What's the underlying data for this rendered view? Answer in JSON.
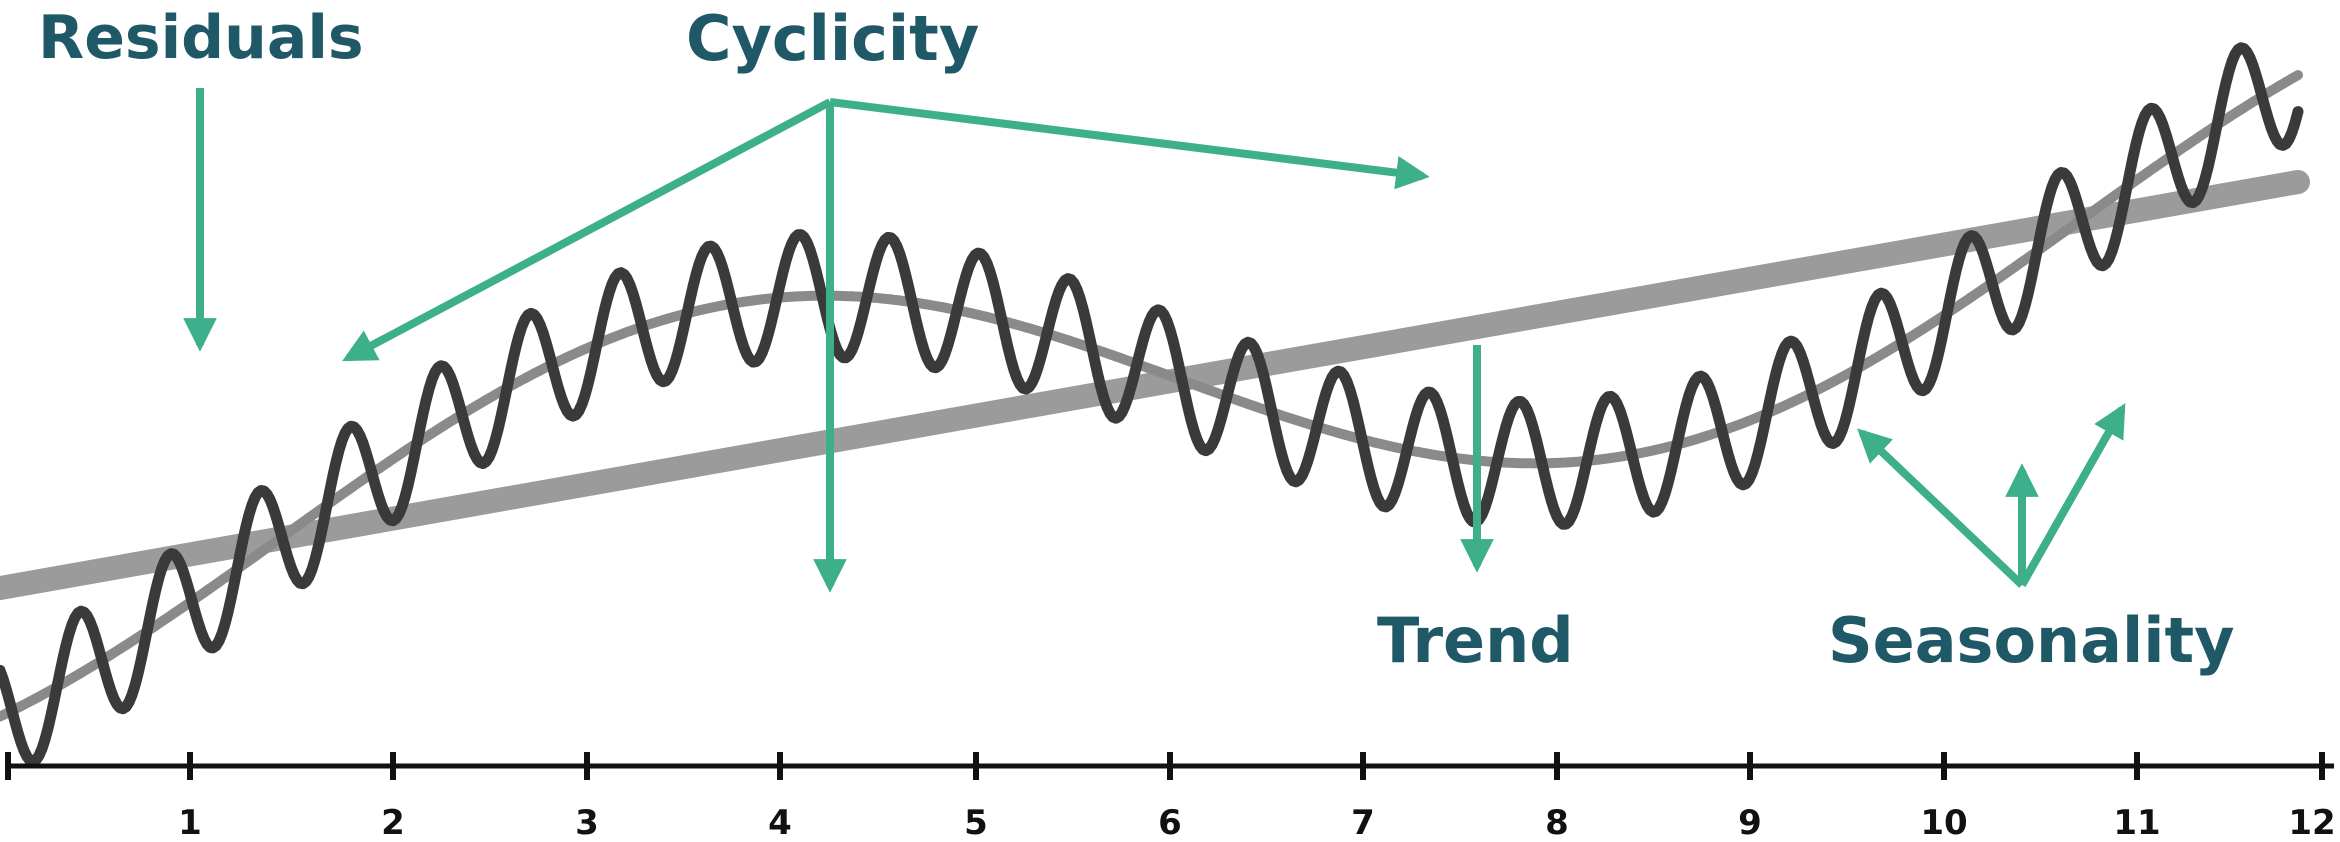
{
  "labels": {
    "residuals": "Residuals",
    "cyclicity": "Cyclicity",
    "trend": "Trend",
    "seasonality": "Seasonality"
  },
  "axis": {
    "ticks": [
      "1",
      "2",
      "3",
      "4",
      "5",
      "6",
      "7",
      "8",
      "9",
      "10",
      "11",
      "12"
    ]
  },
  "colors": {
    "label": "#1f5866",
    "arrow": "#3daf8a",
    "trend": "#9b9b9b",
    "cycle": "#8a8a8a",
    "signal": "#3a3a3a",
    "axis": "#111111"
  }
}
